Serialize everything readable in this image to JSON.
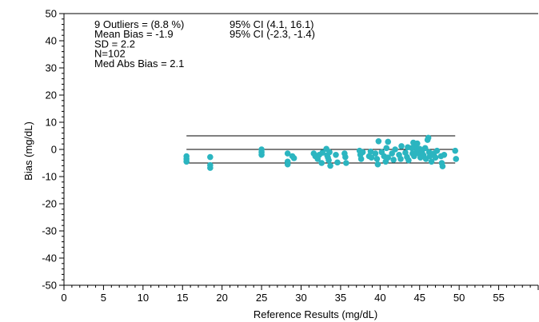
{
  "chart_data": {
    "type": "scatter",
    "title": "",
    "xlabel": "Reference Results (mg/dL)",
    "ylabel": "Bias (mg/dL)",
    "xlim": [
      0,
      60
    ],
    "ylim": [
      -50,
      50
    ],
    "x_ticks": [
      0,
      5,
      10,
      15,
      20,
      25,
      30,
      35,
      40,
      45,
      50,
      55
    ],
    "y_ticks": [
      -50,
      -40,
      -30,
      -20,
      -10,
      0,
      10,
      20,
      30,
      40,
      50
    ],
    "point_color": "#2bb5c0",
    "stats_left": [
      "9 Outliers = (8.8 %)",
      "Mean Bias = -1.9",
      "SD = 2.2",
      "N=102",
      "Med Abs Bias = 2.1"
    ],
    "stats_right": [
      "95% CI (4.1, 16.1)",
      "95% CI (-2.3, -1.4)"
    ],
    "reference_lines": [
      {
        "y": 5,
        "x_start": 15.5,
        "x_end": 49.5
      },
      {
        "y": 0,
        "x_start": 15.5,
        "x_end": 49.5
      },
      {
        "y": -5,
        "x_start": 15.5,
        "x_end": 49.5
      }
    ],
    "points": [
      [
        15.5,
        -2.5
      ],
      [
        15.5,
        -3.5
      ],
      [
        15.5,
        -4.5
      ],
      [
        18.5,
        -2.8
      ],
      [
        18.5,
        -5.8
      ],
      [
        18.5,
        -6.8
      ],
      [
        25.0,
        -1.0
      ],
      [
        25.0,
        -2.0
      ],
      [
        25.0,
        0.0
      ],
      [
        28.3,
        -1.5
      ],
      [
        28.3,
        -4.5
      ],
      [
        28.3,
        -5.5
      ],
      [
        28.9,
        -2.5
      ],
      [
        29.1,
        -3.2
      ],
      [
        31.6,
        -1.5
      ],
      [
        31.8,
        -2.5
      ],
      [
        32.1,
        -3.5
      ],
      [
        32.3,
        -2.0
      ],
      [
        32.6,
        -5.0
      ],
      [
        32.7,
        -1.2
      ],
      [
        33.2,
        0.2
      ],
      [
        33.3,
        -2.2
      ],
      [
        33.4,
        -3.0
      ],
      [
        33.5,
        -4.0
      ],
      [
        33.6,
        -1.0
      ],
      [
        33.7,
        -6.0
      ],
      [
        34.4,
        -2.0
      ],
      [
        34.6,
        -4.8
      ],
      [
        35.5,
        -1.5
      ],
      [
        35.6,
        -2.8
      ],
      [
        35.7,
        -5.0
      ],
      [
        37.4,
        -0.5
      ],
      [
        37.5,
        -2.0
      ],
      [
        37.6,
        -3.5
      ],
      [
        37.8,
        -1.0
      ],
      [
        38.6,
        -2.5
      ],
      [
        38.8,
        -0.8
      ],
      [
        38.9,
        -3.0
      ],
      [
        39.4,
        -1.5
      ],
      [
        39.6,
        -3.5
      ],
      [
        39.7,
        -5.5
      ],
      [
        39.8,
        3.0
      ],
      [
        40.2,
        -1.0
      ],
      [
        40.5,
        -2.5
      ],
      [
        40.7,
        -4.5
      ],
      [
        40.8,
        0.5
      ],
      [
        41.0,
        -3.0
      ],
      [
        41.0,
        2.8
      ],
      [
        41.5,
        -1.5
      ],
      [
        41.7,
        -3.8
      ],
      [
        41.9,
        0.0
      ],
      [
        42.4,
        -2.0
      ],
      [
        42.6,
        -3.5
      ],
      [
        42.7,
        1.2
      ],
      [
        43.2,
        -1.2
      ],
      [
        43.4,
        -2.8
      ],
      [
        43.5,
        0.8
      ],
      [
        43.6,
        -4.0
      ],
      [
        44.0,
        0.5
      ],
      [
        44.1,
        -1.5
      ],
      [
        44.2,
        2.5
      ],
      [
        44.3,
        -2.5
      ],
      [
        44.5,
        1.0
      ],
      [
        44.6,
        -0.8
      ],
      [
        44.7,
        2.2
      ],
      [
        44.9,
        -1.5
      ],
      [
        45.0,
        0.2
      ],
      [
        45.1,
        -3.0
      ],
      [
        45.3,
        -1.0
      ],
      [
        45.5,
        -2.2
      ],
      [
        45.7,
        0.5
      ],
      [
        45.8,
        -3.5
      ],
      [
        46.0,
        3.5
      ],
      [
        46.1,
        4.3
      ],
      [
        46.2,
        -1.0
      ],
      [
        46.3,
        -2.5
      ],
      [
        46.5,
        -4.5
      ],
      [
        46.8,
        -1.5
      ],
      [
        47.0,
        -3.0
      ],
      [
        47.2,
        -0.5
      ],
      [
        47.7,
        -2.5
      ],
      [
        47.8,
        -5.0
      ],
      [
        47.9,
        -6.2
      ],
      [
        48.1,
        -2.0
      ],
      [
        49.5,
        -0.5
      ],
      [
        49.6,
        -3.5
      ]
    ]
  }
}
